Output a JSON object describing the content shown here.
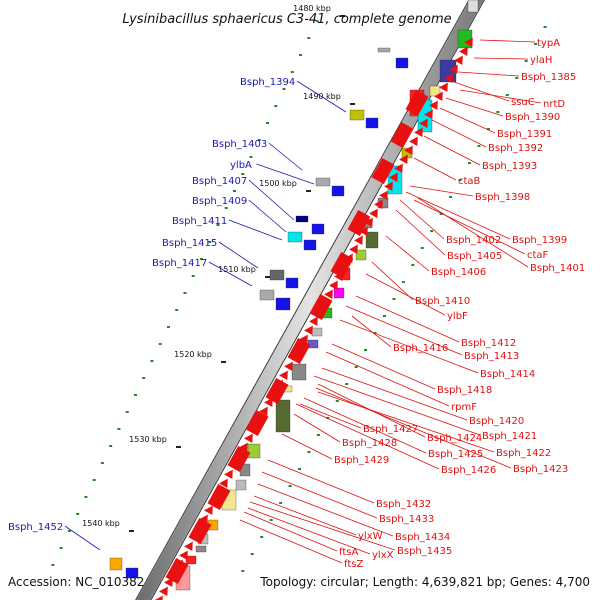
{
  "title": "Lysinibacillus sphaericus C3-41, complete genome",
  "scale_labels": [
    "1480 kbp",
    "1490 kbp",
    "1500 kbp",
    "1510 kbp",
    "1520 kbp",
    "1530 kbp",
    "1540 kbp"
  ],
  "left_labels": [
    "Bsph_1394",
    "Bsph_1403",
    "ylbA",
    "Bsph_1407",
    "Bsph_1409",
    "Bsph_1411",
    "Bsph_1415",
    "Bsph_1417",
    "Bsph_1452"
  ],
  "right_labels": [
    "typA",
    "ylaH",
    "Bsph_1385",
    "ssuC",
    "nrtD",
    "Bsph_1390",
    "Bsph_1391",
    "Bsph_1392",
    "Bsph_1393",
    "ctaB",
    "Bsph_1398",
    "Bsph_1399",
    "Bsph_1402",
    "Bsph_1405",
    "ctaF",
    "Bsph_1401",
    "Bsph_1406",
    "Bsph_1410",
    "ylbF",
    "Bsph_1412",
    "Bsph_1416",
    "Bsph_1413",
    "Bsph_1414",
    "Bsph_1418",
    "rpmF",
    "Bsph_1420",
    "Bsph_1421",
    "Bsph_1427",
    "Bsph_1424",
    "Bsph_1428",
    "Bsph_1422",
    "Bsph_1425",
    "Bsph_1429",
    "Bsph_1426",
    "Bsph_1423",
    "Bsph_1432",
    "Bsph_1433",
    "Bsph_1434",
    "ylxW",
    "Bsph_1435",
    "ylxX",
    "ftsA",
    "ftsZ"
  ],
  "footer": {
    "accession": "Accession: NC_010382",
    "topology": "Topology: circular; Length: 4,639,821 bp; Genes: 4,700"
  },
  "colors": {
    "forward_strand": "#e81010",
    "reverse_strand": "#1414e8",
    "left_label": "#1a1ab8",
    "right_label": "#dd1111",
    "gc_ticks": "#228b22"
  }
}
